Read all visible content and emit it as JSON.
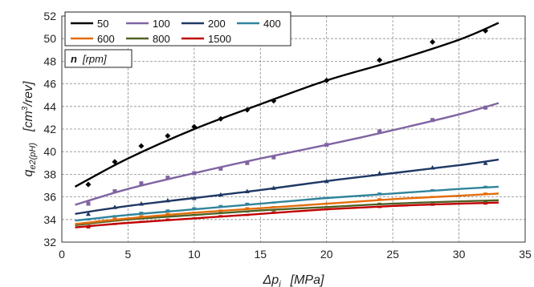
{
  "chart_data": {
    "type": "line",
    "xlabel": "Δp",
    "xlabel_sub": "i",
    "xlabel_unit": "[MPa]",
    "ylabel": "q",
    "ylabel_sub": "e2(pH)",
    "ylabel_unit_prefix": "[cm",
    "ylabel_unit_sup": "3",
    "ylabel_unit_suffix": "/rev]",
    "xlim": [
      0,
      35
    ],
    "ylim": [
      32,
      52
    ],
    "xticks": [
      0,
      5,
      10,
      15,
      20,
      25,
      30,
      35
    ],
    "yticks": [
      32,
      34,
      36,
      38,
      40,
      42,
      44,
      46,
      48,
      50,
      52
    ],
    "grid": true,
    "legend": {
      "placement": "top-left",
      "title_bold": "n",
      "title_rest": "[rpm]"
    },
    "series": [
      {
        "name": "50",
        "color": "#000000",
        "marker": "diamond",
        "curve": [
          [
            1,
            36.9
          ],
          [
            5,
            39.4
          ],
          [
            10,
            42.0
          ],
          [
            15,
            44.2
          ],
          [
            20,
            46.3
          ],
          [
            25,
            48.0
          ],
          [
            30,
            49.9
          ],
          [
            33,
            51.4
          ]
        ],
        "points": [
          [
            2,
            37.1
          ],
          [
            4,
            39.1
          ],
          [
            6,
            40.5
          ],
          [
            8,
            41.4
          ],
          [
            10,
            42.2
          ],
          [
            12,
            42.9
          ],
          [
            14,
            43.7
          ],
          [
            16,
            44.5
          ],
          [
            20,
            46.3
          ],
          [
            24,
            48.1
          ],
          [
            28,
            49.7
          ],
          [
            32,
            50.7
          ]
        ]
      },
      {
        "name": "100",
        "color": "#8064A2",
        "marker": "square",
        "curve": [
          [
            1,
            35.3
          ],
          [
            5,
            36.7
          ],
          [
            10,
            38.1
          ],
          [
            15,
            39.4
          ],
          [
            20,
            40.6
          ],
          [
            25,
            41.9
          ],
          [
            30,
            43.3
          ],
          [
            33,
            44.3
          ]
        ],
        "points": [
          [
            2,
            35.4
          ],
          [
            4,
            36.5
          ],
          [
            6,
            37.2
          ],
          [
            8,
            37.7
          ],
          [
            10,
            38.1
          ],
          [
            12,
            38.5
          ],
          [
            14,
            39.0
          ],
          [
            16,
            39.5
          ],
          [
            20,
            40.6
          ],
          [
            24,
            41.8
          ],
          [
            28,
            42.8
          ],
          [
            32,
            43.9
          ]
        ]
      },
      {
        "name": "200",
        "color": "#1F3864",
        "marker": "triangle",
        "curve": [
          [
            1,
            34.5
          ],
          [
            5,
            35.2
          ],
          [
            10,
            35.9
          ],
          [
            15,
            36.6
          ],
          [
            20,
            37.4
          ],
          [
            25,
            38.1
          ],
          [
            30,
            38.8
          ],
          [
            33,
            39.3
          ]
        ],
        "points": [
          [
            2,
            34.5
          ],
          [
            4,
            35.1
          ],
          [
            6,
            35.4
          ],
          [
            8,
            35.7
          ],
          [
            10,
            35.9
          ],
          [
            12,
            36.2
          ],
          [
            14,
            36.5
          ],
          [
            16,
            36.8
          ],
          [
            20,
            37.4
          ],
          [
            24,
            38.1
          ],
          [
            28,
            38.6
          ],
          [
            32,
            39.0
          ]
        ]
      },
      {
        "name": "400",
        "color": "#31849B",
        "marker": "dash",
        "curve": [
          [
            1,
            33.9
          ],
          [
            5,
            34.4
          ],
          [
            10,
            34.9
          ],
          [
            15,
            35.4
          ],
          [
            20,
            35.9
          ],
          [
            25,
            36.3
          ],
          [
            30,
            36.7
          ],
          [
            33,
            36.9
          ]
        ],
        "points": [
          [
            2,
            34.0
          ],
          [
            4,
            34.3
          ],
          [
            6,
            34.6
          ],
          [
            8,
            34.8
          ],
          [
            10,
            35.0
          ],
          [
            12,
            35.2
          ],
          [
            14,
            35.4
          ],
          [
            16,
            35.5
          ],
          [
            20,
            35.9
          ],
          [
            24,
            36.3
          ],
          [
            28,
            36.6
          ],
          [
            32,
            36.9
          ]
        ]
      },
      {
        "name": "600",
        "color": "#E36C09",
        "marker": "dash",
        "curve": [
          [
            1,
            33.6
          ],
          [
            5,
            34.1
          ],
          [
            10,
            34.6
          ],
          [
            15,
            35.0
          ],
          [
            20,
            35.4
          ],
          [
            25,
            35.8
          ],
          [
            30,
            36.1
          ],
          [
            33,
            36.3
          ]
        ],
        "points": [
          [
            2,
            33.7
          ],
          [
            4,
            34.1
          ],
          [
            6,
            34.3
          ],
          [
            8,
            34.5
          ],
          [
            10,
            34.6
          ],
          [
            12,
            34.8
          ],
          [
            14,
            35.0
          ],
          [
            16,
            35.1
          ],
          [
            20,
            35.4
          ],
          [
            24,
            35.8
          ],
          [
            28,
            36.0
          ],
          [
            32,
            36.3
          ]
        ]
      },
      {
        "name": "800",
        "color": "#4F6228",
        "marker": "dash",
        "curve": [
          [
            1,
            33.5
          ],
          [
            5,
            34.0
          ],
          [
            10,
            34.4
          ],
          [
            15,
            34.8
          ],
          [
            20,
            35.1
          ],
          [
            25,
            35.4
          ],
          [
            30,
            35.6
          ],
          [
            33,
            35.7
          ]
        ],
        "points": [
          [
            2,
            33.6
          ],
          [
            4,
            33.9
          ],
          [
            6,
            34.1
          ],
          [
            8,
            34.3
          ],
          [
            10,
            34.4
          ],
          [
            12,
            34.6
          ],
          [
            14,
            34.7
          ],
          [
            16,
            34.8
          ],
          [
            20,
            35.1
          ],
          [
            24,
            35.4
          ],
          [
            28,
            35.5
          ],
          [
            32,
            35.6
          ]
        ]
      },
      {
        "name": "1500",
        "color": "#C00000",
        "marker": "dash",
        "curve": [
          [
            1,
            33.3
          ],
          [
            5,
            33.7
          ],
          [
            10,
            34.1
          ],
          [
            15,
            34.5
          ],
          [
            20,
            34.9
          ],
          [
            25,
            35.2
          ],
          [
            30,
            35.4
          ],
          [
            33,
            35.5
          ]
        ],
        "points": [
          [
            2,
            33.3
          ],
          [
            4,
            33.6
          ],
          [
            6,
            33.8
          ],
          [
            8,
            34.0
          ],
          [
            10,
            34.1
          ],
          [
            12,
            34.3
          ],
          [
            14,
            34.4
          ],
          [
            16,
            34.6
          ],
          [
            20,
            34.9
          ],
          [
            24,
            35.1
          ],
          [
            28,
            35.3
          ],
          [
            32,
            35.4
          ]
        ]
      }
    ]
  }
}
